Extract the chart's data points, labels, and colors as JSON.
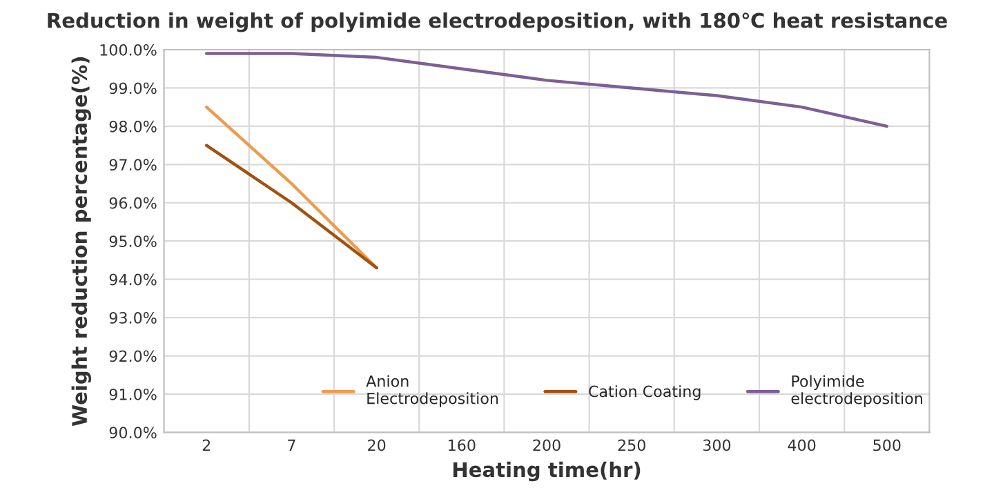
{
  "chart_data": {
    "type": "line",
    "title": "Reduction in weight of polyimide electrodeposition, with 180℃ heat resistance",
    "xlabel": "Heating time(hr)",
    "ylabel": "Weight reduction percentage(%)",
    "categories": [
      "2",
      "7",
      "20",
      "160",
      "200",
      "250",
      "300",
      "400",
      "500"
    ],
    "series": [
      {
        "name": "Anion\nElectrodeposition",
        "color": "#eb9c4f",
        "values": [
          98.5,
          96.5,
          94.3,
          null,
          null,
          null,
          null,
          null,
          null
        ]
      },
      {
        "name": "Cation Coating",
        "color": "#a0520f",
        "values": [
          97.5,
          96.0,
          94.3,
          null,
          null,
          null,
          null,
          null,
          null
        ]
      },
      {
        "name": "Polyimide\nelectrodeposition",
        "color": "#7d5f96",
        "values": [
          99.9,
          99.9,
          99.8,
          99.5,
          99.2,
          99.0,
          98.8,
          98.5,
          98.0
        ]
      }
    ],
    "ylim": [
      90,
      100
    ],
    "yticks": [
      {
        "value": 90,
        "label": "90.0%"
      },
      {
        "value": 91,
        "label": "91.0%"
      },
      {
        "value": 92,
        "label": "92.0%"
      },
      {
        "value": 93,
        "label": "93.0%"
      },
      {
        "value": 94,
        "label": "94.0%"
      },
      {
        "value": 95,
        "label": "95.0%"
      },
      {
        "value": 96,
        "label": "96.0%"
      },
      {
        "value": 97,
        "label": "97.0%"
      },
      {
        "value": 98,
        "label": "98.0%"
      },
      {
        "value": 99,
        "label": "99.0%"
      },
      {
        "value": 100,
        "label": "100.0%"
      }
    ],
    "grid": true,
    "legend": "bottom",
    "marker": "none",
    "line_style": "solid"
  }
}
